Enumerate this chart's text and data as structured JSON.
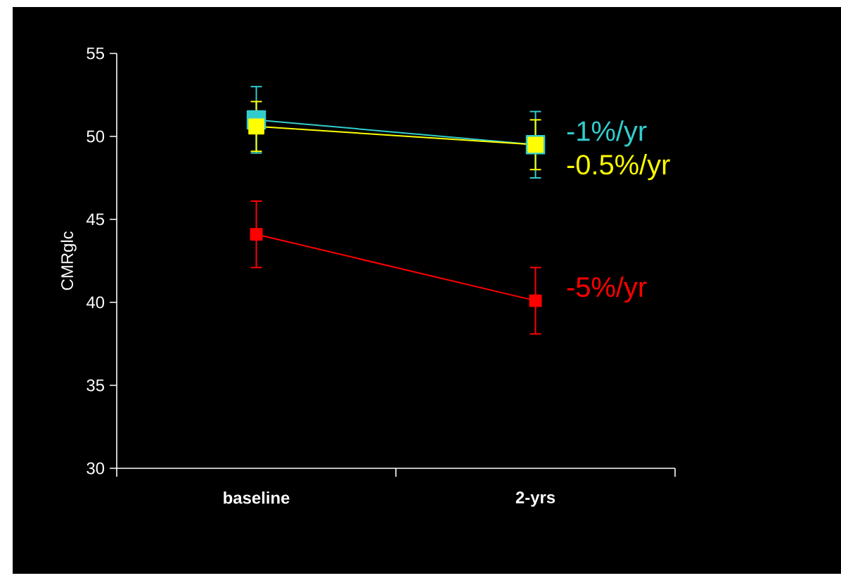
{
  "chart_data": {
    "type": "line",
    "ylabel": "CMRglc",
    "categories": [
      "baseline",
      "2-yrs"
    ],
    "ylim": [
      30,
      55
    ],
    "yticks": [
      30,
      35,
      40,
      45,
      50,
      55
    ],
    "marker": "square",
    "series": [
      {
        "name": "-1%/yr",
        "color": "#33cccc",
        "values": [
          51.0,
          49.5
        ],
        "errors": [
          2,
          2
        ]
      },
      {
        "name": "-0.5%/yr",
        "color": "#ffff00",
        "values": [
          50.6,
          49.5
        ],
        "errors": [
          1.5,
          1.5
        ]
      },
      {
        "name": "-5%/yr",
        "color": "#ff0000",
        "values": [
          44.1,
          40.1
        ],
        "errors": [
          2,
          2
        ]
      }
    ]
  }
}
